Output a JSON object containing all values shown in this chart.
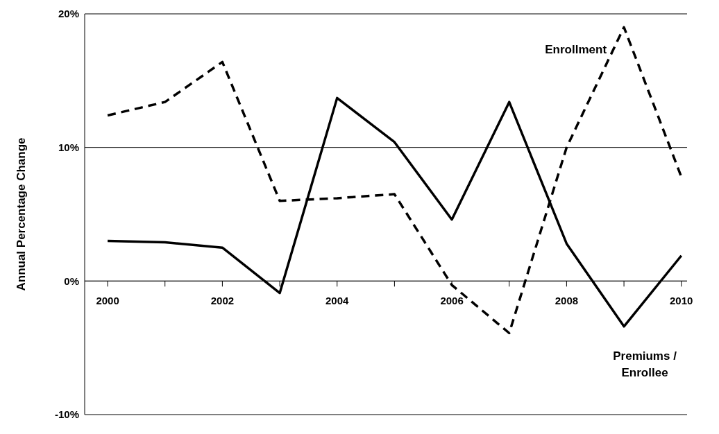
{
  "chart_data": {
    "type": "line",
    "ylabel": "Annual Percentage Change",
    "x": [
      2000,
      2001,
      2002,
      2003,
      2004,
      2005,
      2006,
      2007,
      2008,
      2009,
      2010
    ],
    "series": [
      {
        "name": "Enrollment",
        "color": "#000000",
        "line_style": "dashed",
        "values": [
          12.4,
          13.4,
          16.4,
          6.0,
          6.2,
          6.5,
          -0.3,
          -3.9,
          10.0,
          19.0,
          7.8
        ]
      },
      {
        "name": "Premiums / Enrollee",
        "color": "#000000",
        "line_style": "solid",
        "values": [
          3.0,
          2.9,
          2.5,
          -0.9,
          13.7,
          10.4,
          4.6,
          13.4,
          2.8,
          -3.4,
          1.9
        ]
      }
    ],
    "xlim": [
      1999.6,
      2010.1
    ],
    "xticks": [
      2000,
      {
        "value": 2001,
        "label": null
      },
      2002,
      {
        "value": 2003,
        "label": null
      },
      2004,
      {
        "value": 2005,
        "label": null
      },
      2006,
      {
        "value": 2007,
        "label": null
      },
      2008,
      {
        "value": 2009,
        "label": null
      },
      2010
    ],
    "ylim": [
      -10,
      20
    ],
    "yticks": [
      {
        "value": -10,
        "label": "-10%"
      },
      {
        "value": 0,
        "label": "0%"
      },
      {
        "value": 10,
        "label": "10%"
      },
      {
        "value": 20,
        "label": "20%"
      }
    ],
    "grid": "y",
    "legend": false,
    "marker": "none"
  }
}
